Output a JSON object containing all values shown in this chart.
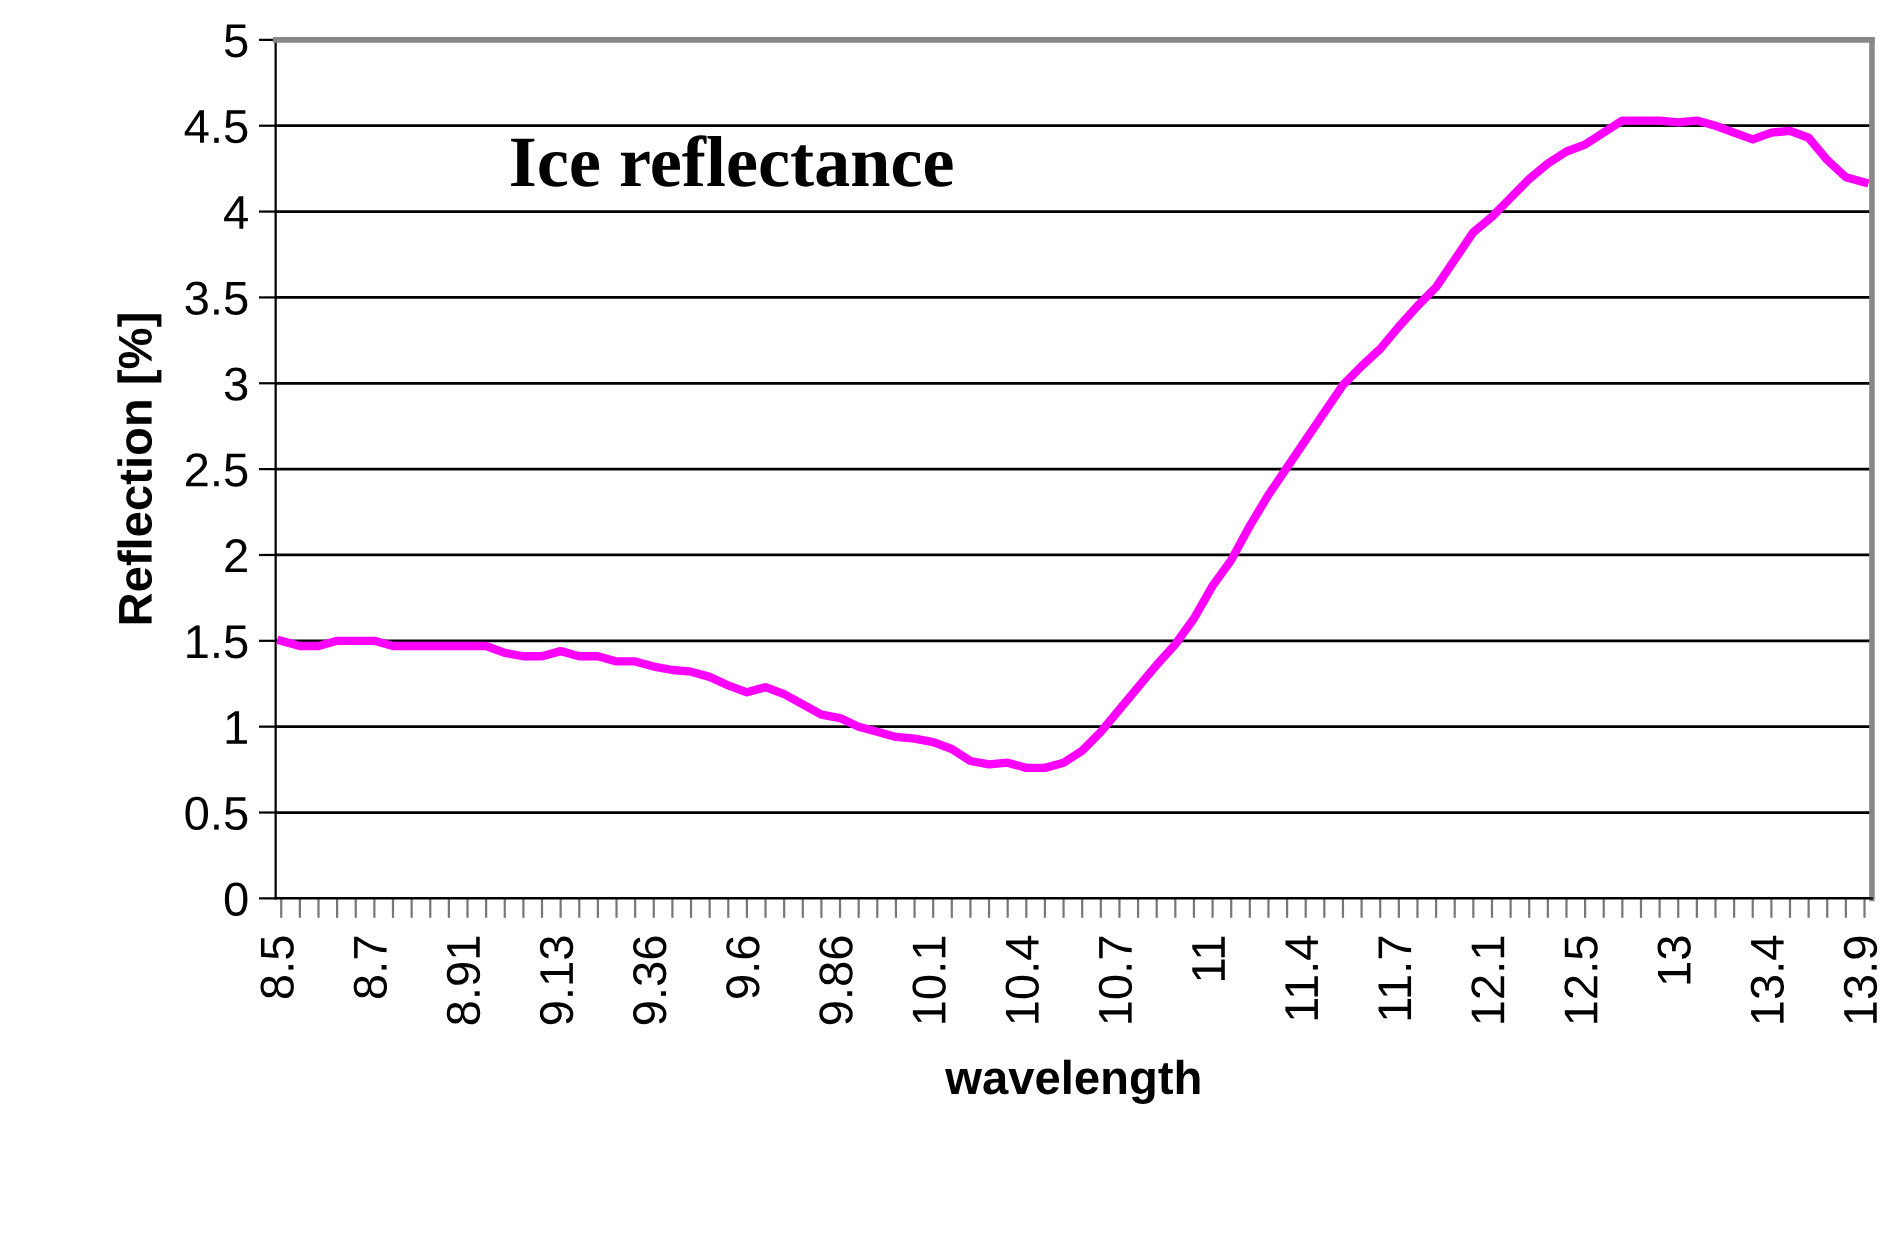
{
  "chart_data": {
    "type": "line",
    "title": "Ice reflectance",
    "xlabel": "wavelength",
    "ylabel": "Reflection [%]",
    "categories": [
      "8.5",
      null,
      null,
      null,
      null,
      "8.7",
      null,
      null,
      null,
      null,
      "8.91",
      null,
      null,
      null,
      null,
      "9.13",
      null,
      null,
      null,
      null,
      "9.36",
      null,
      null,
      null,
      null,
      "9.6",
      null,
      null,
      null,
      null,
      "9.86",
      null,
      null,
      null,
      null,
      "10.1",
      null,
      null,
      null,
      null,
      "10.4",
      null,
      null,
      null,
      null,
      "10.7",
      null,
      null,
      null,
      null,
      "11",
      null,
      null,
      null,
      null,
      "11.4",
      null,
      null,
      null,
      null,
      "11.7",
      null,
      null,
      null,
      null,
      "12.1",
      null,
      null,
      null,
      null,
      "12.5",
      null,
      null,
      null,
      null,
      "13",
      null,
      null,
      null,
      null,
      "13.4",
      null,
      null,
      null,
      null,
      "13.9"
    ],
    "series": [
      {
        "color": "#ff00ff",
        "values": [
          1.5,
          1.47,
          1.47,
          1.5,
          1.5,
          1.5,
          1.47,
          1.47,
          1.47,
          1.47,
          1.47,
          1.47,
          1.43,
          1.41,
          1.41,
          1.44,
          1.41,
          1.41,
          1.38,
          1.38,
          1.35,
          1.33,
          1.32,
          1.29,
          1.24,
          1.2,
          1.23,
          1.19,
          1.13,
          1.07,
          1.05,
          1.0,
          0.97,
          0.94,
          0.93,
          0.91,
          0.87,
          0.8,
          0.78,
          0.79,
          0.76,
          0.76,
          0.79,
          0.86,
          0.97,
          1.1,
          1.23,
          1.36,
          1.48,
          1.63,
          1.82,
          1.97,
          2.17,
          2.35,
          2.51,
          2.67,
          2.83,
          2.99,
          3.1,
          3.2,
          3.33,
          3.45,
          3.56,
          3.72,
          3.88,
          3.97,
          4.08,
          4.19,
          4.28,
          4.35,
          4.39,
          4.46,
          4.53,
          4.53,
          4.53,
          4.52,
          4.53,
          4.5,
          4.46,
          4.42,
          4.46,
          4.47,
          4.43,
          4.3,
          4.2,
          4.17
        ]
      }
    ],
    "ylim": [
      0,
      5
    ],
    "yticks": [
      0,
      0.5,
      1,
      1.5,
      2,
      2.5,
      3,
      3.5,
      4,
      4.5,
      5
    ],
    "grid": "y",
    "marker": "none",
    "line_style": "solid"
  }
}
